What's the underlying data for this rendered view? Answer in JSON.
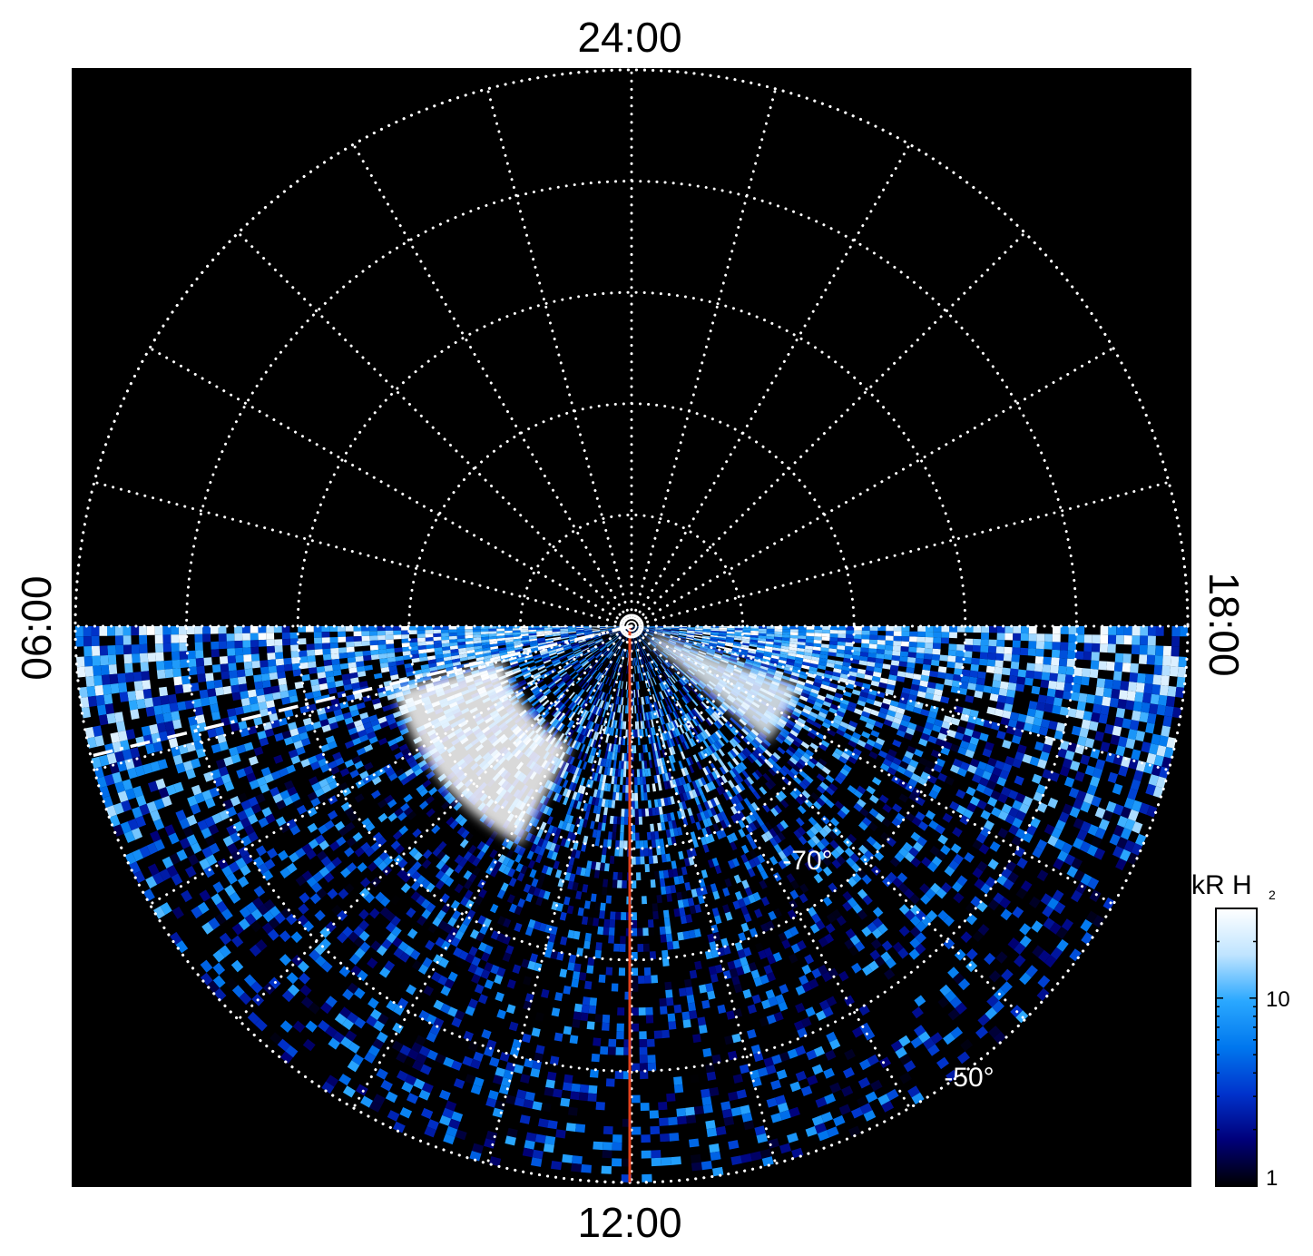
{
  "chart_data": {
    "type": "heatmap",
    "projection": "polar",
    "hemisphere": "south",
    "title": "",
    "local_time_labels": {
      "top": "24:00",
      "bottom": "12:00",
      "left": "06:00",
      "right": "18:00"
    },
    "latitude_labels": [
      {
        "text": "-70°",
        "value": -70
      },
      {
        "text": "-50°",
        "value": -50
      }
    ],
    "latitude_circles": [
      -80,
      -70,
      -60,
      -50,
      -40
    ],
    "local_time_grid_hours": [
      0,
      1,
      2,
      3,
      4,
      5,
      6,
      7,
      8,
      9,
      10,
      11,
      12,
      13,
      14,
      15,
      16,
      17,
      18,
      19,
      20,
      21,
      22,
      23
    ],
    "colorbar": {
      "label_main": "kR H",
      "label_sub": "2",
      "scale": "log",
      "range": [
        1,
        30
      ],
      "ticks": [
        {
          "text": "10",
          "value": 10
        },
        {
          "text": "1",
          "value": 1
        }
      ],
      "colors": [
        "#000000",
        "#00007a",
        "#0033cc",
        "#0077ee",
        "#2aa8ff",
        "#bfe4ff",
        "#ffffff"
      ]
    },
    "data_coverage_lt": [
      6,
      18
    ],
    "bright_features": [
      {
        "lt_start": 7.0,
        "lt_end": 10.2,
        "colat_start": 12,
        "colat_end": 22,
        "value": 30
      },
      {
        "lt_start": 15.3,
        "lt_end": 16.7,
        "colat_start": 2,
        "colat_end": 16,
        "value": 25
      }
    ],
    "overlays": {
      "noon_meridian_color": "#e2401c",
      "dashed_line_lt": 6.9,
      "pole_marker": "circle"
    },
    "grid": true
  }
}
